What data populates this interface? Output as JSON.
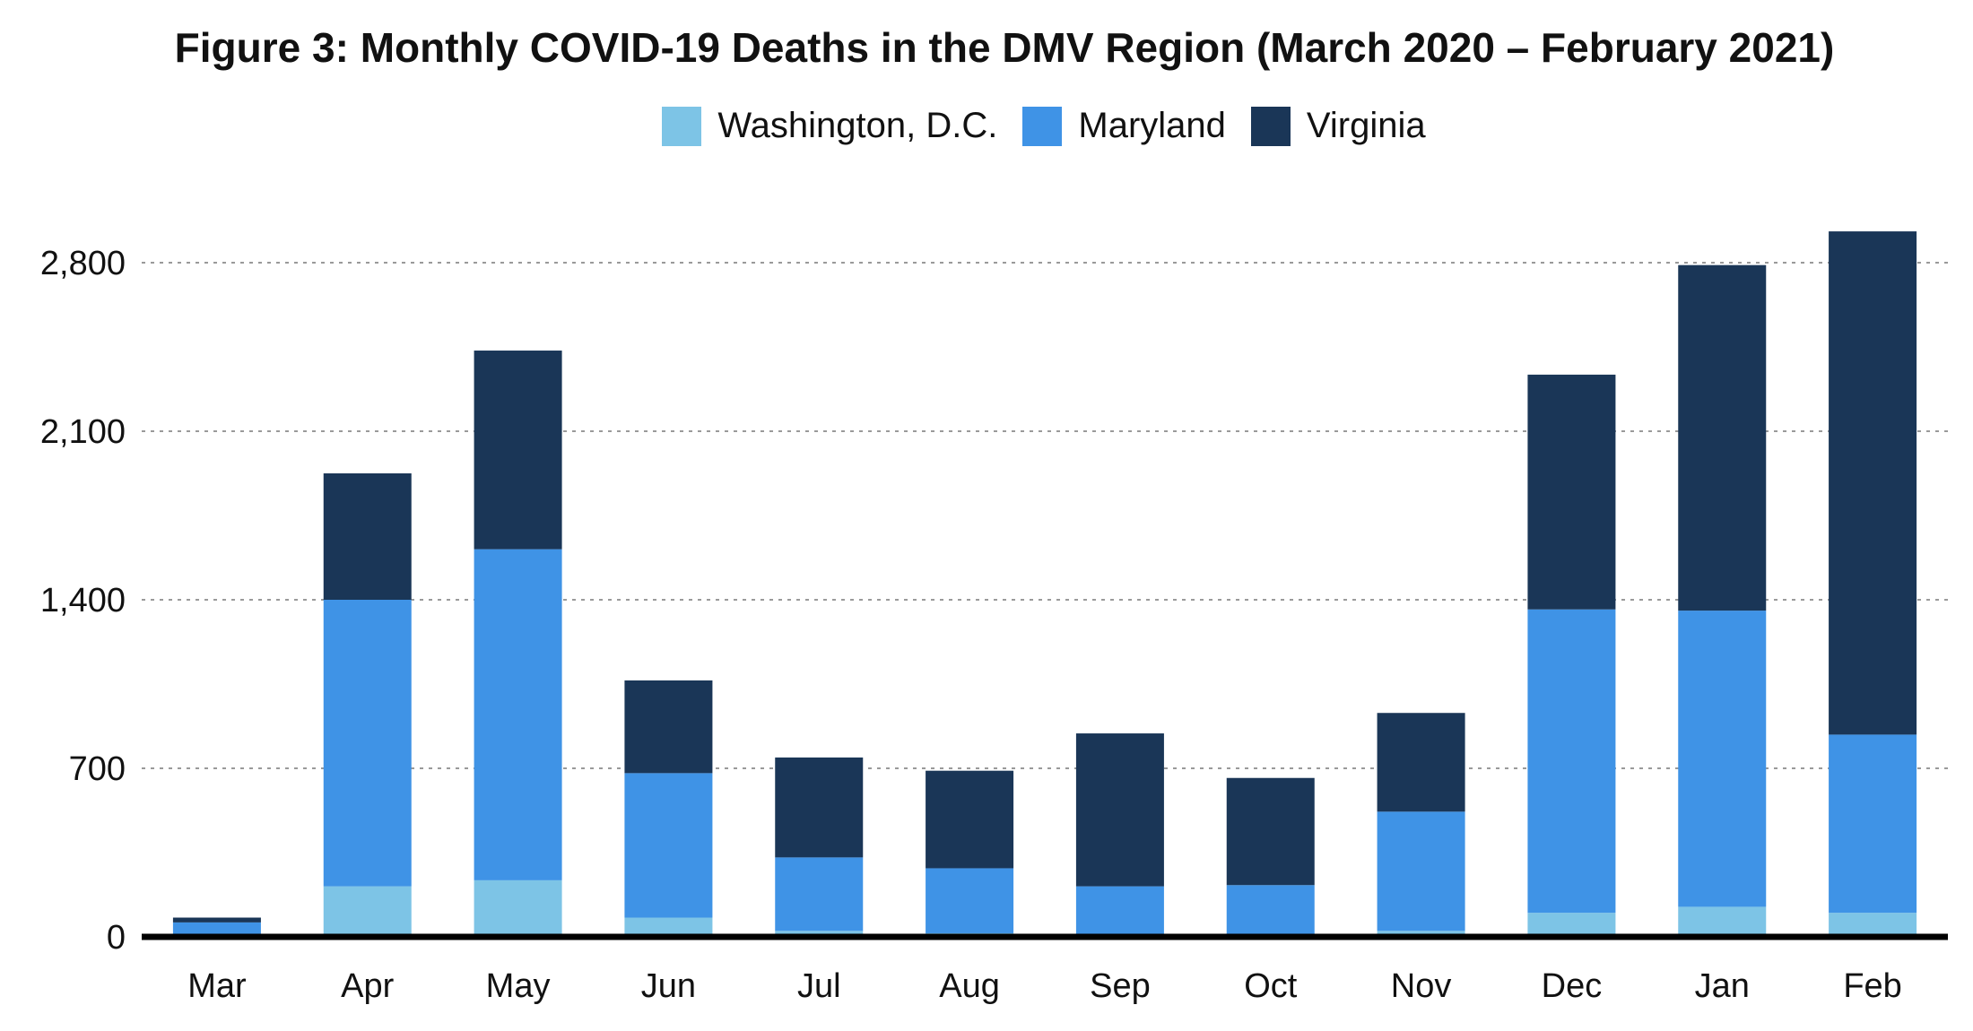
{
  "chart_data": {
    "type": "bar",
    "stacked": true,
    "title": "Figure 3: Monthly COVID-19 Deaths in the DMV Region (March 2020 – February 2021)",
    "xlabel": "",
    "ylabel": "",
    "categories": [
      "Mar",
      "Apr",
      "May",
      "Jun",
      "Jul",
      "Aug",
      "Sep",
      "Oct",
      "Nov",
      "Dec",
      "Jan",
      "Feb"
    ],
    "series": [
      {
        "name": "Washington, D.C.",
        "color": "#7dc4e6",
        "values": [
          5,
          210,
          235,
          80,
          25,
          15,
          10,
          10,
          25,
          100,
          125,
          100
        ]
      },
      {
        "name": "Maryland",
        "color": "#3f93e6",
        "values": [
          55,
          1190,
          1375,
          600,
          305,
          270,
          200,
          205,
          495,
          1260,
          1230,
          740
        ]
      },
      {
        "name": "Virginia",
        "color": "#1a3657",
        "values": [
          20,
          525,
          825,
          385,
          415,
          405,
          635,
          445,
          410,
          975,
          1435,
          2090
        ]
      }
    ],
    "ylim": [
      0,
      2850
    ],
    "yticks": [
      0,
      700,
      1400,
      2100,
      2800
    ],
    "ytick_labels": [
      "0",
      "700",
      "1,400",
      "2,100",
      "2,800"
    ],
    "grid": true,
    "legend_position": "top-center"
  }
}
